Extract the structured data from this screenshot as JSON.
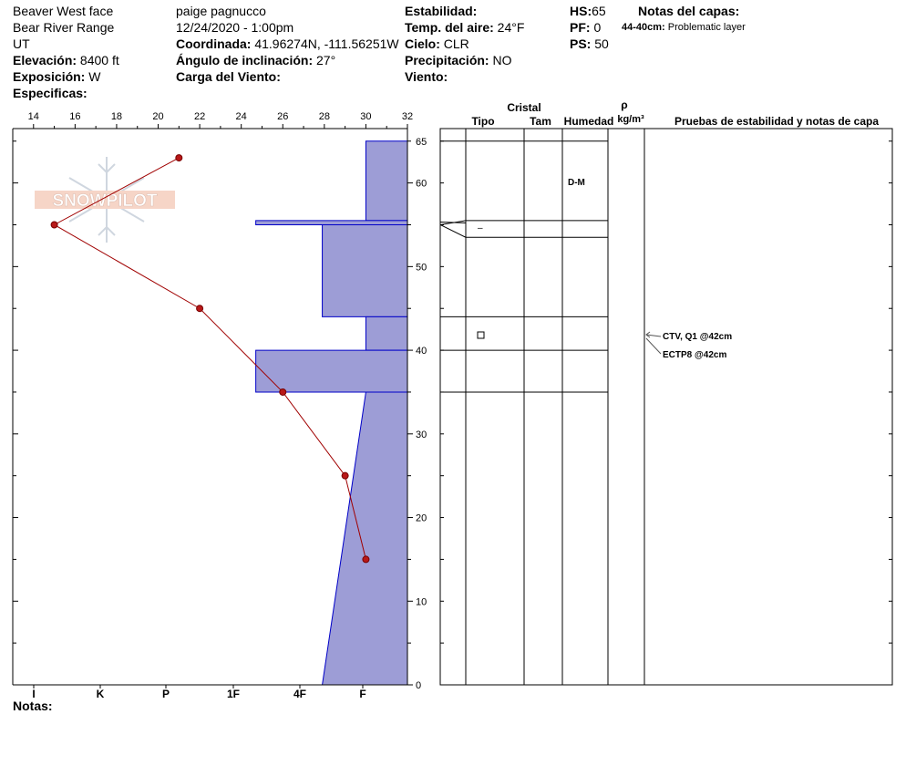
{
  "header": {
    "location": "Beaver West face",
    "range": "Bear River Range",
    "state": "UT",
    "elevation_label": "Elevación:",
    "elevation": "8400 ft",
    "aspect_label": "Exposición:",
    "aspect": "W",
    "specifics_label": "Especificas:",
    "observer": "paige pagnucco",
    "datetime": "12/24/2020 - 1:00pm",
    "coord_label": "Coordinada:",
    "coord": "41.96274N, -111.56251W",
    "slope_label": "Ángulo de inclinación:",
    "slope": "27°",
    "wind_load_label": "Carga del Viento:",
    "stability_label": "Estabilidad:",
    "air_temp_label": "Temp. del aire:",
    "air_temp": "24°F",
    "sky_label": "Cielo:",
    "sky": "CLR",
    "precip_label": "Precipitación:",
    "precip": "NO",
    "wind_label": "Viento:",
    "hs_label": "HS:",
    "hs": "65",
    "pf_label": "PF:",
    "pf": "0",
    "ps_label": "PS:",
    "ps": "50",
    "layer_notes_label": "Notas del capas:",
    "layer_note_range": "44-40cm:",
    "layer_note_text": "Problematic layer"
  },
  "notes_label": "Notas:",
  "columns": {
    "crystal": "Cristal",
    "type": "Tipo",
    "size": "Tam",
    "moisture": "Humedad",
    "rho": "ρ",
    "density_unit": "kg/m³",
    "tests": "Pruebas de estabilidad y notas de capa"
  },
  "layer_labels": {
    "moisture_top": "D-M",
    "dash": "–"
  },
  "test_labels": [
    "CTV, Q1 @42cm",
    "ECTP8 @42cm"
  ],
  "logo_text": "SNOWPILOT",
  "colors": {
    "hardness_fill": "#9d9dd6",
    "hardness_stroke": "#0000c8",
    "temp_line": "#a00000",
    "temp_point": "#b81818"
  },
  "chart_data": {
    "type": "line",
    "temperature_axis": {
      "ticks": [
        14,
        16,
        18,
        20,
        22,
        24,
        26,
        28,
        30,
        32
      ],
      "range": [
        13,
        32
      ]
    },
    "depth_axis": {
      "ticks": [
        0,
        10,
        20,
        30,
        40,
        50,
        60,
        65
      ],
      "range": [
        0,
        66.5
      ]
    },
    "hardness_axis": {
      "ticks": [
        "I",
        "K",
        "P",
        "1F",
        "4F",
        "F"
      ]
    },
    "temperature_profile": [
      {
        "depth": 63,
        "temp": 21
      },
      {
        "depth": 55,
        "temp": 15
      },
      {
        "depth": 45,
        "temp": 22
      },
      {
        "depth": 35,
        "temp": 26
      },
      {
        "depth": 25,
        "temp": 29
      },
      {
        "depth": 15,
        "temp": 30
      }
    ],
    "hardness_profile": [
      {
        "top": 65,
        "bottom": 55.5,
        "temp_equiv": [
          30,
          30
        ]
      },
      {
        "top": 55.5,
        "bottom": 55,
        "temp_equiv": [
          24.7,
          24.7
        ]
      },
      {
        "top": 55,
        "bottom": 44,
        "temp_equiv": [
          27.9,
          27.9
        ]
      },
      {
        "top": 44,
        "bottom": 40,
        "temp_equiv": [
          30,
          30
        ]
      },
      {
        "top": 40,
        "bottom": 35,
        "temp_equiv": [
          24.7,
          24.7
        ]
      },
      {
        "top": 35,
        "bottom": 0,
        "temp_equiv": [
          30,
          27.9
        ]
      }
    ],
    "layer_boundaries": [
      65,
      55.5,
      53.5,
      44,
      40,
      35
    ]
  }
}
